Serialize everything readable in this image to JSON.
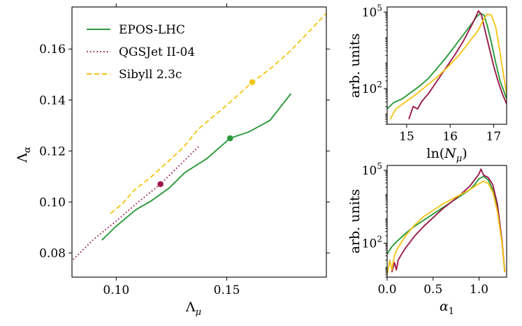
{
  "chart_data": [
    {
      "panel": "main",
      "type": "line",
      "xlabel": "Λ_μ",
      "ylabel": "Λ_α",
      "xlim": [
        0.08,
        0.195
      ],
      "ylim": [
        0.0705,
        0.1765
      ],
      "xticks": [
        0.1,
        0.15
      ],
      "xtick_labels": [
        "0.10",
        "0.15"
      ],
      "yticks": [
        0.08,
        0.1,
        0.12,
        0.14,
        0.16
      ],
      "ytick_labels": [
        "0.08",
        "0.10",
        "0.12",
        "0.14",
        "0.16"
      ],
      "legend_position": "top-left",
      "series": [
        {
          "name": "EPOS-LHC",
          "color": "#2a9a3a",
          "style": "solid",
          "x": [
            0.0935,
            0.1,
            0.109,
            0.116,
            0.124,
            0.131,
            0.141,
            0.1515,
            0.16,
            0.1695,
            0.179
          ],
          "y": [
            0.085,
            0.0905,
            0.097,
            0.1005,
            0.1055,
            0.1115,
            0.117,
            0.125,
            0.1275,
            0.132,
            0.1425
          ],
          "marker": {
            "x": 0.1515,
            "y": 0.125
          }
        },
        {
          "name": "QGSJet II-04",
          "color": "#9b1a4a",
          "style": "dotted",
          "x": [
            0.0795,
            0.09,
            0.1,
            0.11,
            0.12,
            0.13,
            0.1375
          ],
          "y": [
            0.0765,
            0.0855,
            0.0925,
            0.1,
            0.107,
            0.1155,
            0.122
          ],
          "marker": {
            "x": 0.12,
            "y": 0.107
          }
        },
        {
          "name": "Sibyll 2.3c",
          "color": "#f5c518",
          "style": "dashed",
          "x": [
            0.0975,
            0.103,
            0.108,
            0.116,
            0.123,
            0.1305,
            0.137,
            0.148,
            0.1545,
            0.1615,
            0.17,
            0.179,
            0.195
          ],
          "y": [
            0.0955,
            0.0995,
            0.1045,
            0.11,
            0.1155,
            0.1215,
            0.1285,
            0.1365,
            0.1415,
            0.147,
            0.1525,
            0.1595,
            0.174
          ],
          "marker": {
            "x": 0.1615,
            "y": 0.147
          }
        }
      ]
    },
    {
      "panel": "top-right",
      "type": "line",
      "xlabel": "ln(N_μ)",
      "ylabel": "arb. units",
      "yscale": "log",
      "xlim": [
        14.55,
        17.3
      ],
      "ylim_log10": [
        0.6,
        5.2
      ],
      "xticks": [
        15,
        16,
        17
      ],
      "xtick_labels": [
        "15",
        "16",
        "17"
      ],
      "yticks_log10": [
        2,
        5
      ],
      "series": [
        {
          "name": "EPOS-LHC",
          "color": "#2a9a3a",
          "x": [
            14.55,
            14.7,
            14.9,
            15.1,
            15.3,
            15.5,
            15.7,
            15.9,
            16.1,
            16.3,
            16.5,
            16.6,
            16.7,
            16.78,
            16.85,
            16.95,
            17.05,
            17.15,
            17.3
          ],
          "log10y": [
            1.2,
            1.45,
            1.6,
            1.85,
            2.1,
            2.4,
            2.8,
            3.2,
            3.65,
            4.1,
            4.55,
            4.8,
            4.95,
            4.88,
            4.5,
            3.8,
            3.0,
            2.3,
            1.6
          ]
        },
        {
          "name": "QGSJet II-04",
          "color": "#9b1a4a",
          "x": [
            15.05,
            15.15,
            15.25,
            15.35,
            15.5,
            15.7,
            15.9,
            16.1,
            16.3,
            16.5,
            16.6,
            16.65,
            16.72,
            16.8,
            16.9,
            17.0,
            17.1,
            17.2,
            17.3
          ],
          "log10y": [
            0.8,
            1.3,
            1.2,
            1.5,
            1.8,
            2.3,
            2.8,
            3.3,
            3.85,
            4.5,
            4.85,
            5.05,
            4.9,
            4.3,
            3.6,
            2.9,
            2.3,
            1.8,
            1.4
          ]
        },
        {
          "name": "Sibyll 2.3c",
          "color": "#f5c518",
          "x": [
            14.62,
            14.75,
            14.95,
            15.2,
            15.45,
            15.7,
            15.95,
            16.2,
            16.45,
            16.65,
            16.75,
            16.85,
            16.95,
            17.05,
            17.15,
            17.25,
            17.3
          ],
          "log10y": [
            0.8,
            1.2,
            1.45,
            1.75,
            2.1,
            2.45,
            2.85,
            3.3,
            3.85,
            4.3,
            4.65,
            4.92,
            4.88,
            4.4,
            3.4,
            2.3,
            1.8
          ]
        }
      ]
    },
    {
      "panel": "bottom-right",
      "type": "line",
      "xlabel": "α_1",
      "ylabel": "arb. units",
      "yscale": "log",
      "xlim": [
        0.0,
        1.3
      ],
      "ylim_log10": [
        0.6,
        5.2
      ],
      "xticks": [
        0.0,
        0.5,
        1.0
      ],
      "xtick_labels": [
        "0.0",
        "0.5",
        "1.0"
      ],
      "yticks_log10": [
        2,
        5
      ],
      "series": [
        {
          "name": "EPOS-LHC",
          "color": "#2a9a3a",
          "x": [
            0.0,
            0.05,
            0.1,
            0.2,
            0.3,
            0.4,
            0.5,
            0.6,
            0.7,
            0.8,
            0.9,
            0.95,
            1.0,
            1.05,
            1.1,
            1.15,
            1.2,
            1.25,
            1.28
          ],
          "log10y": [
            1.55,
            1.85,
            2.05,
            2.4,
            2.7,
            2.95,
            3.2,
            3.45,
            3.7,
            3.95,
            4.2,
            4.4,
            4.65,
            4.75,
            4.6,
            4.2,
            3.4,
            2.0,
            0.8
          ]
        },
        {
          "name": "QGSJet II-04",
          "color": "#9b1a4a",
          "x": [
            0.05,
            0.08,
            0.1,
            0.12,
            0.15,
            0.2,
            0.3,
            0.4,
            0.5,
            0.6,
            0.7,
            0.8,
            0.9,
            0.95,
            1.0,
            1.02,
            1.05,
            1.1,
            1.15,
            1.2,
            1.25,
            1.28
          ],
          "log10y": [
            0.8,
            1.2,
            0.9,
            1.3,
            1.5,
            1.8,
            2.3,
            2.7,
            3.05,
            3.4,
            3.7,
            4.0,
            4.35,
            4.6,
            4.85,
            5.05,
            4.8,
            4.7,
            4.4,
            3.6,
            2.1,
            0.8
          ]
        },
        {
          "name": "Sibyll 2.3c",
          "color": "#f5c518",
          "x": [
            0.0,
            0.03,
            0.05,
            0.08,
            0.1,
            0.15,
            0.2,
            0.3,
            0.4,
            0.5,
            0.6,
            0.7,
            0.8,
            0.9,
            1.0,
            1.05,
            1.1,
            1.15,
            1.2,
            1.25,
            1.28
          ],
          "log10y": [
            0.7,
            1.3,
            0.9,
            1.5,
            1.7,
            2.0,
            2.3,
            2.75,
            3.1,
            3.35,
            3.6,
            3.8,
            4.0,
            4.2,
            4.45,
            4.55,
            4.45,
            4.1,
            3.3,
            2.0,
            0.8
          ]
        }
      ]
    }
  ]
}
